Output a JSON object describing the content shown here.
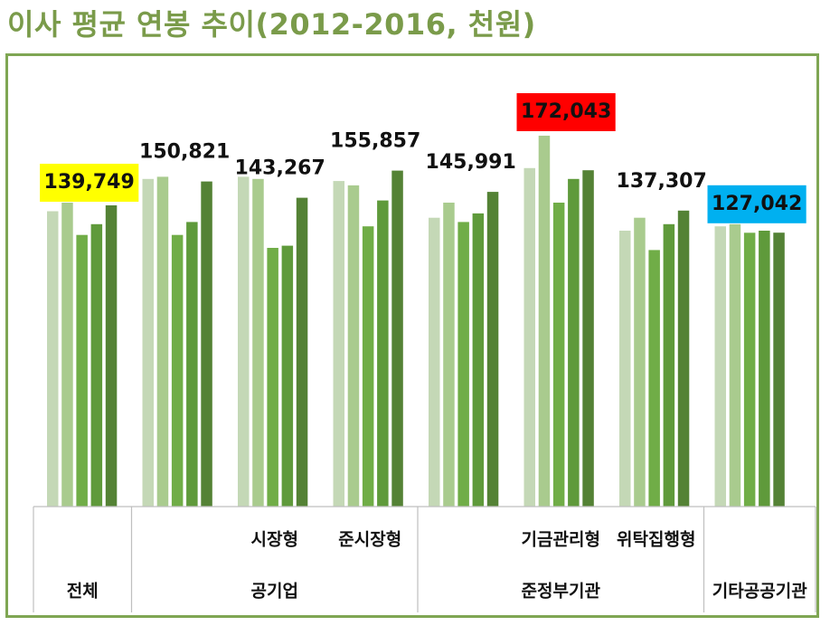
{
  "title": "이사 평균 연봉 추이(2012-2016, 천원)",
  "chart_data": {
    "type": "bar",
    "title": "이사 평균 연봉 추이(2012-2016, 천원)",
    "categories": [
      "전체",
      "공기업",
      "시장형",
      "준시장형",
      "준정부기관",
      "기금관리형",
      "위탁집행형",
      "기타공공기관"
    ],
    "category_hierarchy": [
      {
        "group": "전체",
        "subcategories": []
      },
      {
        "group": "공기업",
        "subcategories": [
          "시장형",
          "준시장형"
        ]
      },
      {
        "group": "준정부기관",
        "subcategories": [
          "기금관리형",
          "위탁집행형"
        ]
      },
      {
        "group": "기타공공기관",
        "subcategories": []
      }
    ],
    "series": [
      {
        "values": [
          137000,
          152000,
          153000,
          151000,
          134000,
          157000,
          128000,
          130000
        ]
      },
      {
        "values": [
          141000,
          153000,
          152000,
          149000,
          141000,
          172043,
          134000,
          131000
        ]
      },
      {
        "values": [
          126000,
          126000,
          120000,
          130000,
          132000,
          141000,
          119000,
          127000
        ]
      },
      {
        "values": [
          131000,
          132000,
          121000,
          142000,
          136000,
          152000,
          131000,
          128000
        ]
      },
      {
        "values": [
          139749,
          150821,
          143267,
          155857,
          145991,
          156000,
          137307,
          127042
        ]
      }
    ],
    "data_labels": [
      {
        "category": "전체",
        "text": "139,749",
        "highlight": "#ffff00"
      },
      {
        "category": "공기업",
        "text": "150,821",
        "highlight": null
      },
      {
        "category": "시장형",
        "text": "143,267",
        "highlight": null
      },
      {
        "category": "준시장형",
        "text": "155,857",
        "highlight": null
      },
      {
        "category": "준정부기관",
        "text": "145,991",
        "highlight": null
      },
      {
        "category": "기금관리형",
        "text": "172,043",
        "highlight": "#ff0000"
      },
      {
        "category": "위탁집행형",
        "text": "137,307",
        "highlight": null
      },
      {
        "category": "기타공공기관",
        "text": "127,042",
        "highlight": "#00b0f0"
      }
    ],
    "series_colors": [
      "#c4d8b6",
      "#a9cb8e",
      "#70ad47",
      "#5f9a3b",
      "#548235"
    ],
    "ylim": [
      0,
      172043
    ],
    "grid": false,
    "legend": "none"
  }
}
